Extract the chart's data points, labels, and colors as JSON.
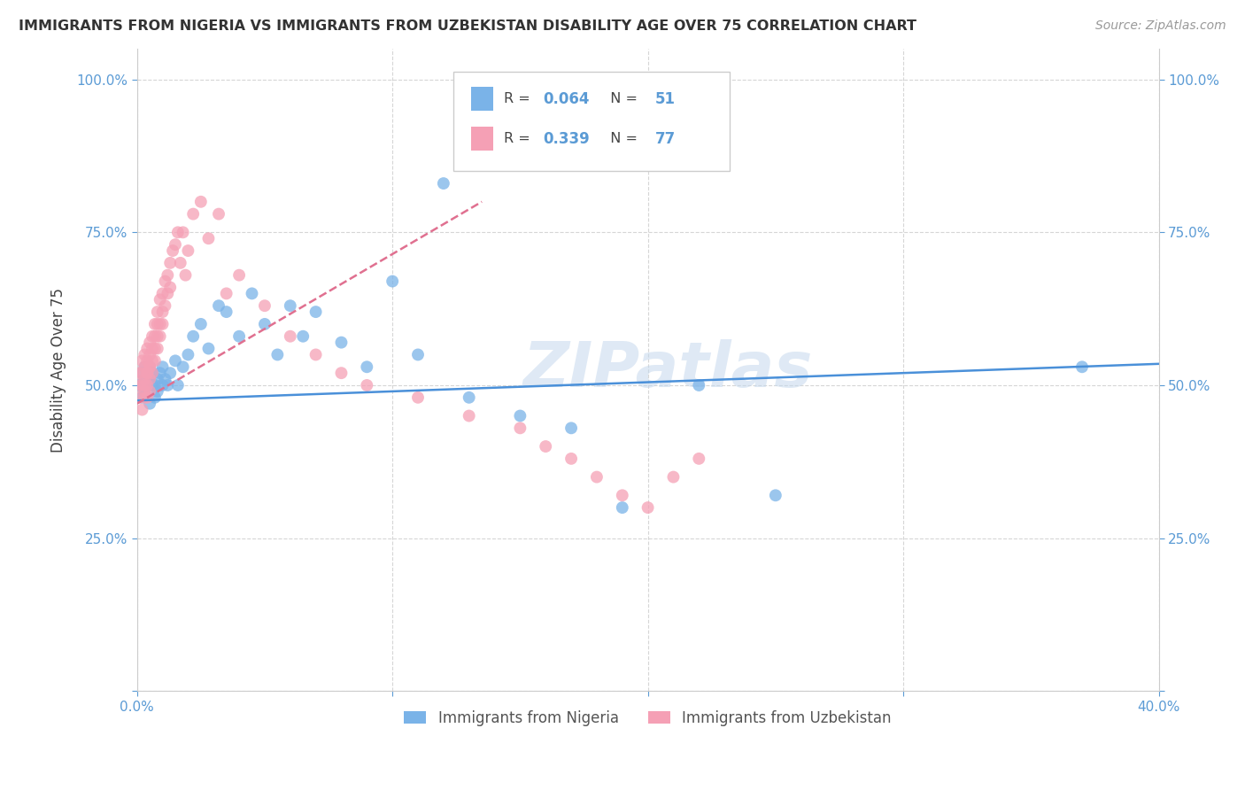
{
  "title": "IMMIGRANTS FROM NIGERIA VS IMMIGRANTS FROM UZBEKISTAN DISABILITY AGE OVER 75 CORRELATION CHART",
  "source": "Source: ZipAtlas.com",
  "ylabel": "Disability Age Over 75",
  "xlim": [
    0.0,
    0.4
  ],
  "ylim": [
    0.0,
    1.05
  ],
  "xticks": [
    0.0,
    0.1,
    0.2,
    0.3,
    0.4
  ],
  "xticklabels": [
    "0.0%",
    "",
    "",
    "",
    "40.0%"
  ],
  "yticks": [
    0.0,
    0.25,
    0.5,
    0.75,
    1.0
  ],
  "yticklabels_left": [
    "",
    "25.0%",
    "50.0%",
    "75.0%",
    "100.0%"
  ],
  "yticklabels_right": [
    "",
    "25.0%",
    "50.0%",
    "75.0%",
    "100.0%"
  ],
  "legend_labels": [
    "Immigrants from Nigeria",
    "Immigrants from Uzbekistan"
  ],
  "nigeria_color": "#7ab3e8",
  "uzbekistan_color": "#f5a0b5",
  "nigeria_R": 0.064,
  "nigeria_N": 51,
  "uzbekistan_R": 0.339,
  "uzbekistan_N": 77,
  "nigeria_line_color": "#4a90d9",
  "uzbekistan_line_color": "#e07090",
  "watermark": "ZIPatlas",
  "nigeria_x": [
    0.001,
    0.002,
    0.002,
    0.003,
    0.003,
    0.003,
    0.004,
    0.004,
    0.005,
    0.005,
    0.005,
    0.006,
    0.006,
    0.007,
    0.007,
    0.008,
    0.008,
    0.009,
    0.01,
    0.01,
    0.011,
    0.012,
    0.013,
    0.015,
    0.016,
    0.018,
    0.02,
    0.022,
    0.025,
    0.028,
    0.032,
    0.035,
    0.04,
    0.045,
    0.05,
    0.055,
    0.06,
    0.065,
    0.07,
    0.08,
    0.09,
    0.1,
    0.11,
    0.12,
    0.13,
    0.15,
    0.17,
    0.19,
    0.22,
    0.25,
    0.37
  ],
  "nigeria_y": [
    0.5,
    0.52,
    0.48,
    0.51,
    0.53,
    0.49,
    0.52,
    0.5,
    0.51,
    0.47,
    0.53,
    0.5,
    0.52,
    0.48,
    0.5,
    0.51,
    0.49,
    0.52,
    0.5,
    0.53,
    0.51,
    0.5,
    0.52,
    0.54,
    0.5,
    0.53,
    0.55,
    0.58,
    0.6,
    0.56,
    0.63,
    0.62,
    0.58,
    0.65,
    0.6,
    0.55,
    0.63,
    0.58,
    0.62,
    0.57,
    0.53,
    0.67,
    0.55,
    0.83,
    0.48,
    0.45,
    0.43,
    0.3,
    0.5,
    0.32,
    0.53
  ],
  "uzbekistan_x": [
    0.001,
    0.001,
    0.001,
    0.002,
    0.002,
    0.002,
    0.002,
    0.003,
    0.003,
    0.003,
    0.003,
    0.003,
    0.003,
    0.004,
    0.004,
    0.004,
    0.004,
    0.004,
    0.004,
    0.005,
    0.005,
    0.005,
    0.005,
    0.005,
    0.005,
    0.006,
    0.006,
    0.006,
    0.006,
    0.007,
    0.007,
    0.007,
    0.007,
    0.008,
    0.008,
    0.008,
    0.008,
    0.009,
    0.009,
    0.009,
    0.01,
    0.01,
    0.01,
    0.011,
    0.011,
    0.012,
    0.012,
    0.013,
    0.013,
    0.014,
    0.015,
    0.016,
    0.017,
    0.018,
    0.019,
    0.02,
    0.022,
    0.025,
    0.028,
    0.032,
    0.035,
    0.04,
    0.05,
    0.06,
    0.07,
    0.08,
    0.09,
    0.11,
    0.13,
    0.15,
    0.16,
    0.17,
    0.18,
    0.19,
    0.2,
    0.21,
    0.22
  ],
  "uzbekistan_y": [
    0.5,
    0.52,
    0.48,
    0.54,
    0.5,
    0.46,
    0.52,
    0.53,
    0.51,
    0.49,
    0.55,
    0.5,
    0.48,
    0.56,
    0.52,
    0.5,
    0.54,
    0.48,
    0.52,
    0.57,
    0.53,
    0.51,
    0.55,
    0.49,
    0.53,
    0.58,
    0.54,
    0.52,
    0.56,
    0.6,
    0.56,
    0.54,
    0.58,
    0.62,
    0.58,
    0.56,
    0.6,
    0.64,
    0.6,
    0.58,
    0.65,
    0.62,
    0.6,
    0.67,
    0.63,
    0.68,
    0.65,
    0.7,
    0.66,
    0.72,
    0.73,
    0.75,
    0.7,
    0.75,
    0.68,
    0.72,
    0.78,
    0.8,
    0.74,
    0.78,
    0.65,
    0.68,
    0.63,
    0.58,
    0.55,
    0.52,
    0.5,
    0.48,
    0.45,
    0.43,
    0.4,
    0.38,
    0.35,
    0.32,
    0.3,
    0.35,
    0.38
  ]
}
